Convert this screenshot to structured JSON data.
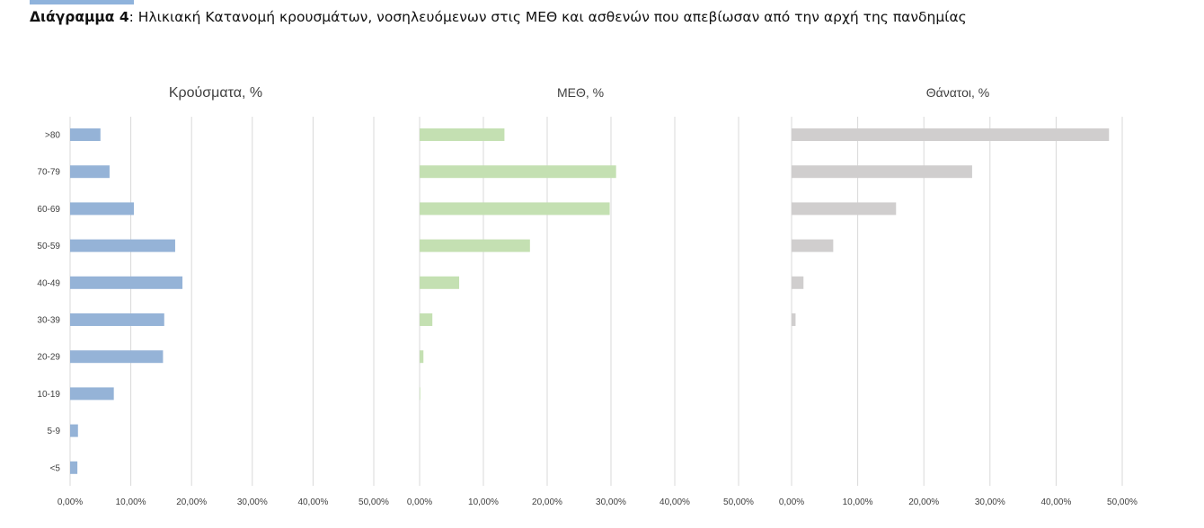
{
  "caption": {
    "label": "Διάγραμμα 4",
    "text": ": Ηλικιακή Κατανομή κρουσμάτων, νοσηλευόμενων στις ΜΕΘ και ασθενών που απεβίωσαν από την αρχή της πανδημίας"
  },
  "chart_data": [
    {
      "type": "bar",
      "orientation": "horizontal",
      "title": "Κρούσματα, %",
      "color": "#95b3d7",
      "categories": [
        ">80",
        "70-79",
        "60-69",
        "50-59",
        "40-49",
        "30-39",
        "20-29",
        "10-19",
        "5-9",
        "<5"
      ],
      "values": [
        5.0,
        6.5,
        10.5,
        17.3,
        18.5,
        15.5,
        15.3,
        7.2,
        1.3,
        1.2
      ],
      "xlim": [
        0,
        50
      ],
      "xticks": [
        "0,00%",
        "10,00%",
        "20,00%",
        "30,00%",
        "40,00%",
        "50,00%"
      ],
      "grid": "vertical"
    },
    {
      "type": "bar",
      "orientation": "horizontal",
      "title": "ΜΕΘ, %",
      "color": "#c4e0b2",
      "categories": [
        ">80",
        "70-79",
        "60-69",
        "50-59",
        "40-49",
        "30-39",
        "20-29",
        "10-19",
        "5-9",
        "<5"
      ],
      "values": [
        13.3,
        30.8,
        29.8,
        17.3,
        6.2,
        2.0,
        0.6,
        0.1,
        0,
        0
      ],
      "xlim": [
        0,
        50
      ],
      "xticks": [
        "0,00%",
        "10,00%",
        "20,00%",
        "30,00%",
        "40,00%",
        "50,00%"
      ],
      "grid": "vertical"
    },
    {
      "type": "bar",
      "orientation": "horizontal",
      "title": "Θάνατοι, %",
      "color": "#d0cece",
      "categories": [
        ">80",
        "70-79",
        "60-69",
        "50-59",
        "40-49",
        "30-39",
        "20-29",
        "10-19",
        "5-9",
        "<5"
      ],
      "values": [
        48.0,
        27.3,
        15.8,
        6.3,
        1.8,
        0.6,
        0,
        0,
        0,
        0
      ],
      "xlim": [
        0,
        50
      ],
      "xticks": [
        "0,00%",
        "10,00%",
        "20,00%",
        "30,00%",
        "40,00%",
        "50,00%"
      ],
      "grid": "vertical"
    }
  ]
}
